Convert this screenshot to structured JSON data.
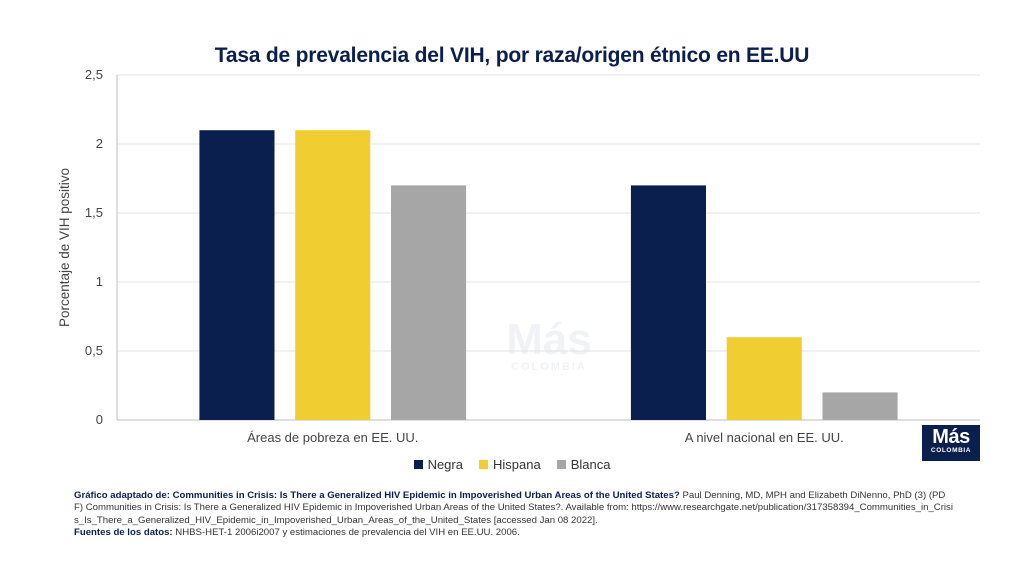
{
  "chart_data": {
    "type": "bar",
    "title": "Tasa de prevalencia del VIH, por raza/origen étnico en EE.UU",
    "ylabel": "Porcentaje de VIH positivo",
    "xlabel": "",
    "ylim": [
      0,
      2.5
    ],
    "yticks": [
      "0",
      "0,5",
      "1",
      "1,5",
      "2",
      "2,5"
    ],
    "categories": [
      "Áreas de pobreza en EE. UU.",
      "A nivel nacional en EE. UU."
    ],
    "series": [
      {
        "name": "Negra",
        "color": "#0b1f4e",
        "values": [
          2.1,
          1.7
        ]
      },
      {
        "name": "Hispana",
        "color": "#f0ce32",
        "values": [
          2.1,
          0.6
        ]
      },
      {
        "name": "Blanca",
        "color": "#a6a6a6",
        "values": [
          1.7,
          0.2
        ]
      }
    ],
    "grid": true,
    "legend_position": "bottom"
  },
  "logo": {
    "main": "Más",
    "sub": "COLOMBIA"
  },
  "watermark": {
    "main": "Más",
    "sub": "COLOMBIA"
  },
  "source": {
    "line1_label": "Gráfico adaptado de: Communities in Crisis: Is There a Generalized HIV Epidemic in Impoverished Urban Areas of the United States?",
    "line1_text": " Paul Denning, MD, MPH and Elizabeth DiNenno, PhD (3) (PDF) Communities in Crisis: Is There a Generalized HIV Epidemic in Impoverished Urban Areas of the United States?. Available from: https://www.researchgate.net/publication/317358394_Communities_in_Crisis_Is_There_a_Generalized_HIV_Epidemic_in_Impoverished_Urban_Areas_of_the_United_States [accessed Jan 08 2022].",
    "line2_label": "Fuentes de los datos:",
    "line2_text": " NHBS-HET-1 2006i2007 y estimaciones de prevalencia del VIH en EE.UU. 2006."
  }
}
